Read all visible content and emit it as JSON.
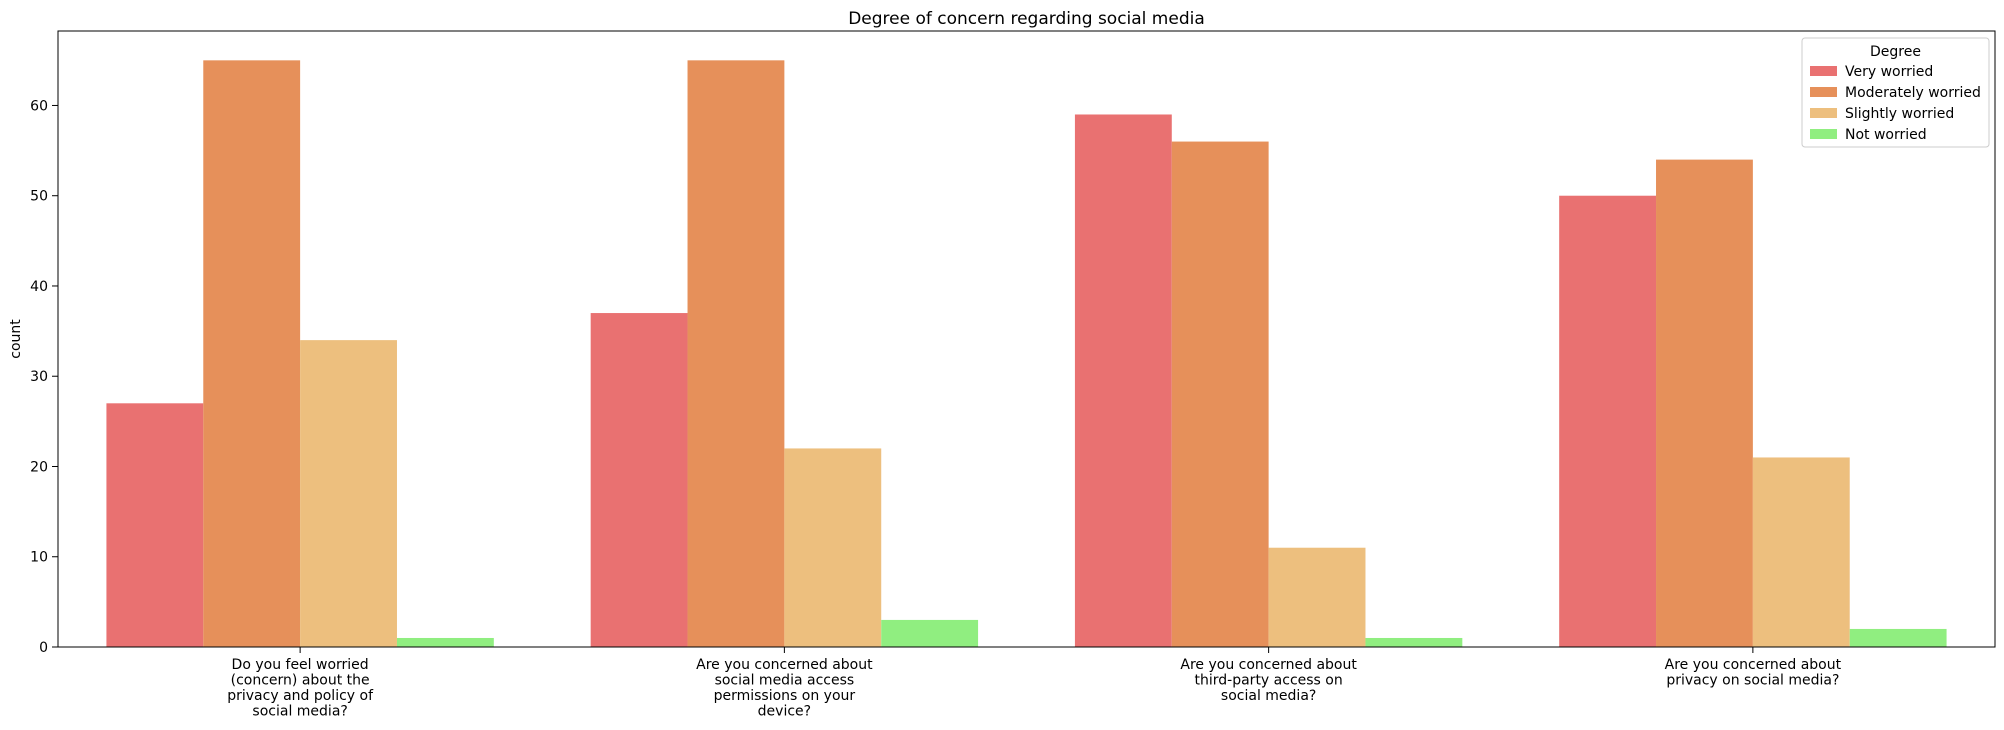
{
  "chart_data": {
    "type": "bar",
    "title": "Degree of concern regarding social media",
    "xlabel": "",
    "ylabel": "count",
    "ylim": [
      0,
      68.25
    ],
    "yticks": [
      0,
      10,
      20,
      30,
      40,
      50,
      60
    ],
    "categories": [
      [
        "Do you feel worried",
        "(concern) about the",
        "privacy and policy of",
        "social media?"
      ],
      [
        "Are you concerned about",
        "social media access",
        "permissions on your",
        "device?"
      ],
      [
        "Are you concerned about",
        "third-party access on",
        "social media?"
      ],
      [
        "Are you concerned about",
        "privacy on social media?"
      ]
    ],
    "legend": {
      "title": "Degree",
      "position": "top-right"
    },
    "series": [
      {
        "name": "Very worried",
        "color": "#e97171",
        "values": [
          27,
          37,
          59,
          50
        ]
      },
      {
        "name": "Moderately worried",
        "color": "#e6905a",
        "values": [
          65,
          65,
          56,
          54
        ]
      },
      {
        "name": "Slightly worried",
        "color": "#edbf7e",
        "values": [
          34,
          22,
          11,
          21
        ]
      },
      {
        "name": "Not worried",
        "color": "#90ee80",
        "values": [
          1,
          3,
          1,
          2
        ]
      }
    ]
  }
}
